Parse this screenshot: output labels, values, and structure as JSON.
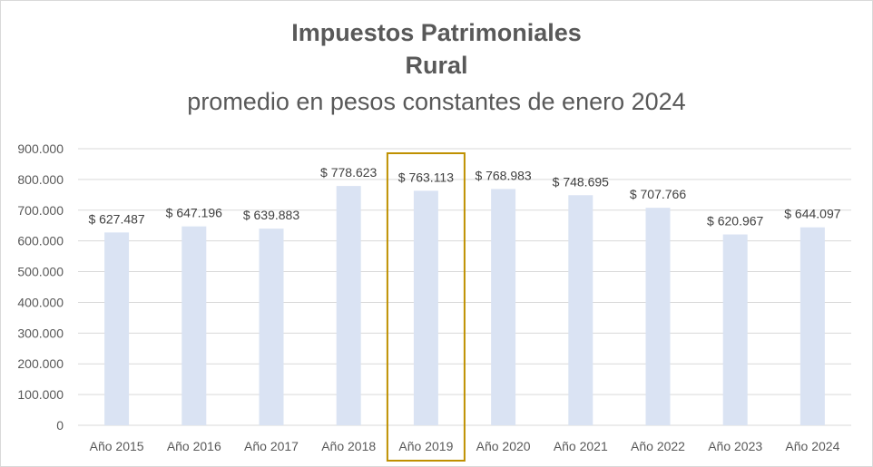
{
  "chart_data": {
    "type": "bar",
    "title": "Impuestos Patrimoniales",
    "subtitle_line1": "Rural",
    "subtitle_line2": "promedio  en pesos constantes de enero 2024",
    "categories": [
      "Año 2015",
      "Año 2016",
      "Año 2017",
      "Año 2018",
      "Año 2019",
      "Año 2020",
      "Año 2021",
      "Año 2022",
      "Año 2023",
      "Año 2024"
    ],
    "values": [
      627487,
      647196,
      639883,
      778623,
      763113,
      768983,
      748695,
      707766,
      620967,
      644097
    ],
    "data_labels": [
      "$ 627.487",
      "$ 647.196",
      "$ 639.883",
      "$ 778.623",
      "$ 763.113",
      "$ 768.983",
      "$ 748.695",
      "$ 707.766",
      "$ 620.967",
      "$ 644.097"
    ],
    "y_ticks": [
      0,
      100000,
      200000,
      300000,
      400000,
      500000,
      600000,
      700000,
      800000,
      900000
    ],
    "y_tick_labels": [
      "0",
      "100.000",
      "200.000",
      "300.000",
      "400.000",
      "500.000",
      "600.000",
      "700.000",
      "800.000",
      "900.000"
    ],
    "ylim": [
      0,
      900000
    ],
    "grid": true,
    "legend": "none",
    "highlighted_category": "Año 2019",
    "colors": {
      "bar": "#dae3f3",
      "grid": "#d9d9d9",
      "highlight_box": "#bf9000",
      "text": "#595959"
    }
  }
}
